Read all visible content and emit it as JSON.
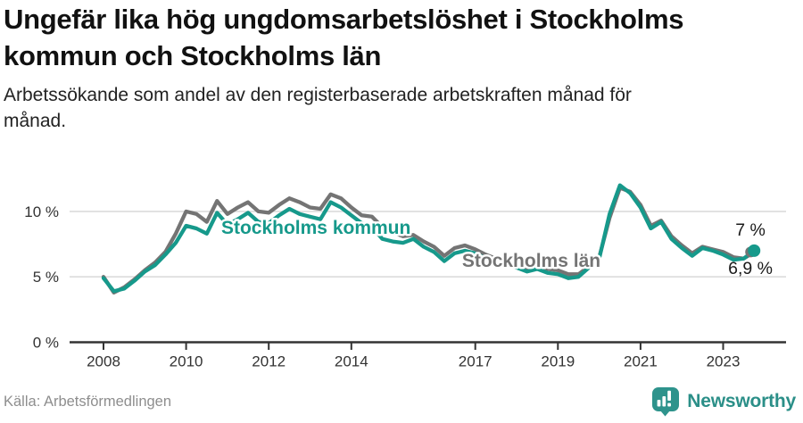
{
  "header": {
    "title_lines": [
      "Ungefär lika hög ungdomsarbetslöshet i Stockholms",
      "kommun och Stockholms län"
    ],
    "subtitle_lines": [
      "Arbetssökande som andel av den registerbaserade arbetskraften månad för",
      "månad."
    ]
  },
  "footer": {
    "source": "Källa: Arbetsförmedlingen",
    "brand": "Newsworthy"
  },
  "colors": {
    "accent_teal": "#16998b",
    "series_gray": "#747474",
    "grid": "#dcdcdc",
    "axis": "#333333",
    "tick_text": "#333333",
    "annotation_text": "#1a1a1a",
    "logo_badge": "#2e938c",
    "logo_text": "#2b8f88"
  },
  "chart_data": {
    "type": "line",
    "title": "Ungefär lika hög ungdomsarbetslöshet i Stockholms kommun och Stockholms län",
    "subtitle": "Arbetssökande som andel av den registerbaserade arbetskraften månad för månad.",
    "xlabel": "",
    "ylabel": "",
    "unit": "%",
    "xlim": [
      2007.2,
      2024.5
    ],
    "ylim": [
      0,
      12.7
    ],
    "grid": "horizontal",
    "legend_position": "inline-labels",
    "yticks": [
      {
        "value": 0,
        "label": "0 %"
      },
      {
        "value": 5,
        "label": "5 %"
      },
      {
        "value": 10,
        "label": "10 %"
      }
    ],
    "xticks": [
      2008,
      2010,
      2012,
      2014,
      2017,
      2019,
      2021,
      2023
    ],
    "x": [
      2008.0,
      2008.25,
      2008.5,
      2008.75,
      2009.0,
      2009.25,
      2009.5,
      2009.75,
      2010.0,
      2010.25,
      2010.5,
      2010.75,
      2011.0,
      2011.25,
      2011.5,
      2011.75,
      2012.0,
      2012.25,
      2012.5,
      2012.75,
      2013.0,
      2013.25,
      2013.5,
      2013.75,
      2014.0,
      2014.25,
      2014.5,
      2014.75,
      2015.0,
      2015.25,
      2015.5,
      2015.75,
      2016.0,
      2016.25,
      2016.5,
      2016.75,
      2017.0,
      2017.25,
      2017.5,
      2017.75,
      2018.0,
      2018.25,
      2018.5,
      2018.75,
      2019.0,
      2019.25,
      2019.5,
      2019.75,
      2020.0,
      2020.25,
      2020.5,
      2020.75,
      2021.0,
      2021.25,
      2021.5,
      2021.75,
      2022.0,
      2022.25,
      2022.5,
      2022.75,
      2023.0,
      2023.25,
      2023.5,
      2023.75
    ],
    "series": [
      {
        "name": "Stockholms kommun",
        "color": "#16998b",
        "end_label": "7 %",
        "end_value": 7.0,
        "label_pos": {
          "x": 2010.85,
          "y": 8.29
        },
        "values": [
          4.9,
          3.9,
          4.1,
          4.7,
          5.4,
          5.9,
          6.7,
          7.6,
          8.9,
          8.7,
          8.3,
          9.9,
          9.0,
          9.4,
          9.9,
          9.2,
          9.1,
          9.7,
          10.2,
          9.8,
          9.6,
          9.4,
          10.7,
          10.3,
          9.7,
          9.1,
          8.8,
          7.9,
          7.7,
          7.6,
          7.9,
          7.3,
          6.9,
          6.2,
          6.8,
          7.0,
          6.8,
          6.4,
          6.1,
          5.9,
          5.7,
          5.4,
          5.6,
          5.3,
          5.2,
          4.9,
          5.0,
          5.7,
          6.4,
          9.8,
          12.0,
          11.4,
          10.3,
          8.7,
          9.2,
          7.9,
          7.2,
          6.6,
          7.2,
          7.0,
          6.7,
          6.3,
          6.4,
          7.0
        ]
      },
      {
        "name": "Stockholms län",
        "color": "#747474",
        "end_label": "6,9 %",
        "end_value": 6.9,
        "label_pos": {
          "x": 2016.68,
          "y": 5.76
        },
        "values": [
          5.0,
          3.8,
          4.2,
          4.8,
          5.5,
          6.1,
          6.9,
          8.3,
          10.0,
          9.8,
          9.2,
          10.8,
          9.8,
          10.3,
          10.7,
          10.0,
          9.9,
          10.5,
          11.0,
          10.7,
          10.3,
          10.2,
          11.3,
          11.0,
          10.3,
          9.7,
          9.6,
          8.8,
          8.4,
          8.1,
          8.2,
          7.7,
          7.3,
          6.6,
          7.2,
          7.4,
          7.1,
          6.7,
          6.4,
          6.2,
          6.0,
          5.7,
          5.8,
          5.6,
          5.5,
          5.2,
          5.2,
          5.8,
          6.5,
          9.5,
          11.8,
          11.5,
          10.5,
          8.9,
          9.3,
          8.1,
          7.4,
          6.8,
          7.3,
          7.1,
          6.9,
          6.5,
          6.4,
          6.9
        ]
      }
    ],
    "annotations": [
      {
        "text": "7 %",
        "x": 2023.66,
        "y": 8.56,
        "series": "Stockholms kommun"
      },
      {
        "text": "6,9 %",
        "x": 2023.66,
        "y": 5.63,
        "series": "Stockholms län"
      }
    ]
  }
}
